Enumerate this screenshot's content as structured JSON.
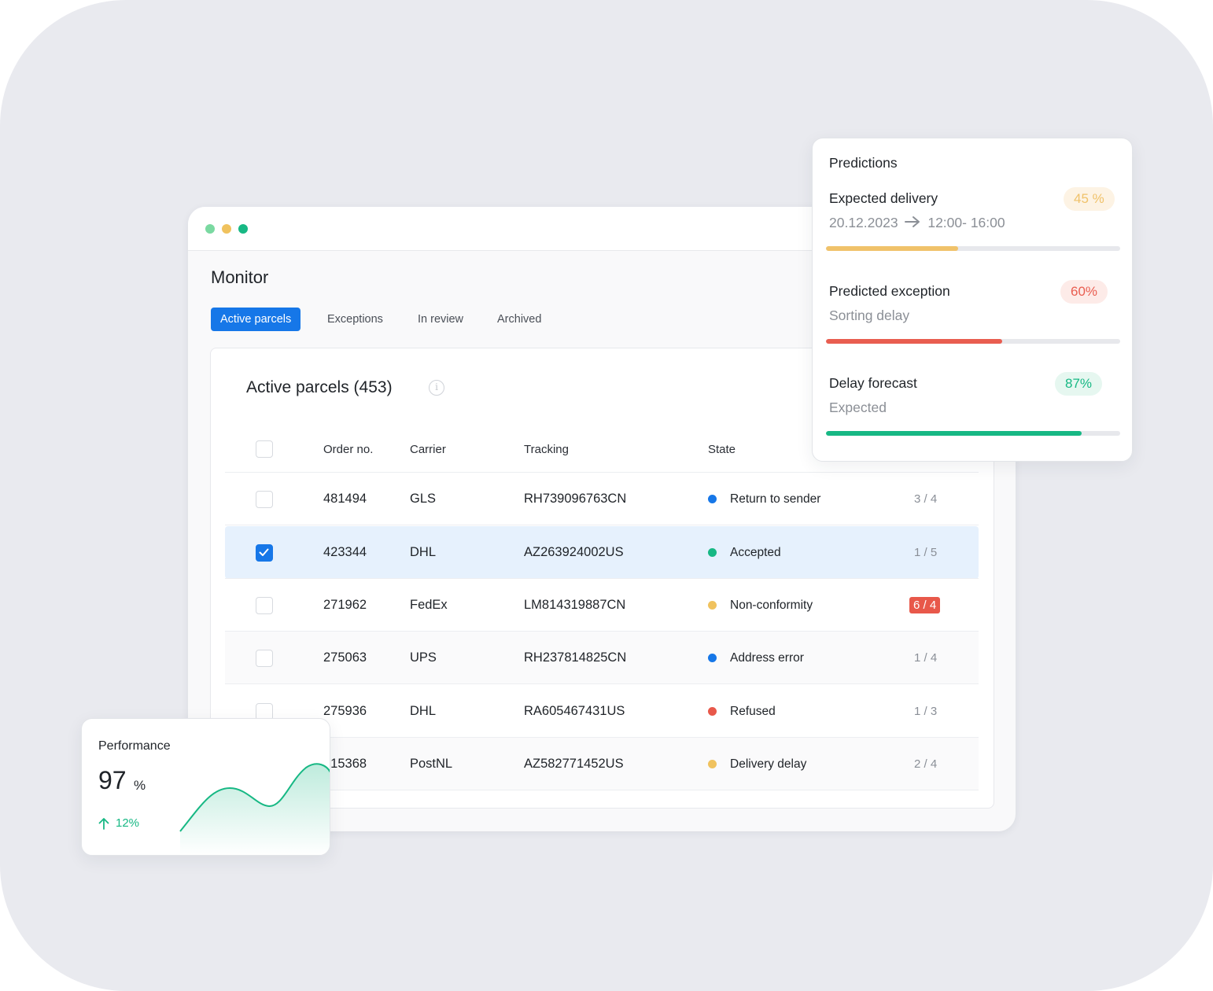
{
  "window": {
    "title": "Monitor",
    "tabs": [
      {
        "label": "Active parcels",
        "active": true
      },
      {
        "label": "Exceptions",
        "active": false
      },
      {
        "label": "In review",
        "active": false
      },
      {
        "label": "Archived",
        "active": false
      }
    ]
  },
  "table": {
    "title": "Active parcels (453)",
    "columns": [
      "Order no.",
      "Carrier",
      "Tracking",
      "State"
    ],
    "rows": [
      {
        "order": "481494",
        "carrier": "GLS",
        "tracking": "RH739096763CN",
        "state": "Return to sender",
        "state_color": "#1677e8",
        "count": "3 / 4",
        "checked": false,
        "count_alert": false
      },
      {
        "order": "423344",
        "carrier": "DHL",
        "tracking": "AZ263924002US",
        "state": "Accepted",
        "state_color": "#17b884",
        "count": "1 / 5",
        "checked": true,
        "count_alert": false
      },
      {
        "order": "271962",
        "carrier": "FedEx",
        "tracking": "LM814319887CN",
        "state": "Non-conformity",
        "state_color": "#f0c25e",
        "count": "6 / 4",
        "checked": false,
        "count_alert": true
      },
      {
        "order": "275063",
        "carrier": "UPS",
        "tracking": "RH237814825CN",
        "state": "Address error",
        "state_color": "#1677e8",
        "count": "1 / 4",
        "checked": false,
        "count_alert": false
      },
      {
        "order": "275936",
        "carrier": "DHL",
        "tracking": "RA605467431US",
        "state": "Refused",
        "state_color": "#e8584a",
        "count": "1 / 3",
        "checked": false,
        "count_alert": false
      },
      {
        "order": "215368",
        "carrier": "PostNL",
        "tracking": "AZ582771452US",
        "state": "Delivery delay",
        "state_color": "#f0c25e",
        "count": "2 / 4",
        "checked": false,
        "count_alert": false
      }
    ]
  },
  "predictions": {
    "title": "Predictions",
    "items": [
      {
        "label": "Expected delivery",
        "sub_date": "20.12.2023",
        "sub_time": "12:00- 16:00",
        "badge": "45 %",
        "progress": 0.45,
        "color": "#f0c26a",
        "badge_bg": "#fdf3e4"
      },
      {
        "label": "Predicted exception",
        "sub": "Sorting delay",
        "badge": "60%",
        "progress": 0.6,
        "color": "#e95d50",
        "badge_bg": "#fdebe8"
      },
      {
        "label": "Delay forecast",
        "sub": "Expected",
        "badge": "87%",
        "progress": 0.87,
        "color": "#17b884",
        "badge_bg": "#e6f7f0"
      }
    ]
  },
  "performance": {
    "title": "Performance",
    "value": "97",
    "unit": "%",
    "change": "12%",
    "accent": "#17b884"
  }
}
